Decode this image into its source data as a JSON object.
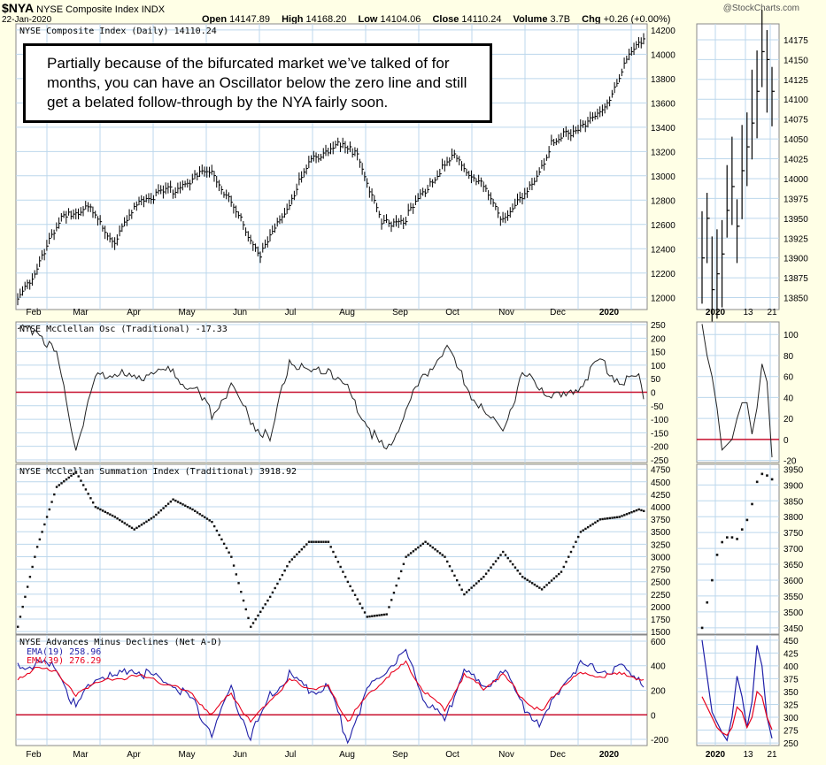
{
  "header": {
    "symbol": "$NYA",
    "name": "NYSE Composite Index",
    "exchange": "INDX",
    "date": "22-Jan-2020",
    "source": "@StockCharts.com",
    "open_label": "Open",
    "open": "14147.89",
    "high_label": "High",
    "high": "14168.20",
    "low_label": "Low",
    "low": "14104.06",
    "close_label": "Close",
    "close": "14110.24",
    "volume_label": "Volume",
    "volume": "3.7B",
    "chg_label": "Chg",
    "chg": "+0.26 (+0.00%)"
  },
  "annotation": "Partially because of the bifurcated market we’ve talked of for months, you can have an Oscillator below the zero line and still get a belated follow-through by the NYA fairly soon.",
  "colors": {
    "background": "#ffffe6",
    "grid": "#bcd7ec",
    "zero_line": "#c8102e",
    "ema19": "#1f1fa8",
    "ema39": "#e8001c",
    "price": "#000000"
  },
  "chart_data": [
    {
      "type": "ohlc",
      "title": "NYSE Composite Index (Daily) 14110.24",
      "x_labels": [
        "Feb",
        "Mar",
        "Apr",
        "May",
        "Jun",
        "Jul",
        "Aug",
        "Sep",
        "Oct",
        "Nov",
        "Dec",
        "2020"
      ],
      "y_ticks": [
        12000,
        12200,
        12400,
        12600,
        12800,
        13000,
        13200,
        13400,
        13600,
        13800,
        14000,
        14200
      ],
      "ylim": [
        11900,
        14250
      ],
      "x": [
        0,
        10,
        20,
        30,
        40,
        50,
        60,
        70,
        80,
        90,
        100,
        110,
        120,
        130,
        140,
        150,
        160,
        170,
        180,
        190,
        200,
        210,
        220,
        230,
        240,
        250,
        258
      ],
      "values": [
        11950,
        12350,
        12700,
        12720,
        12450,
        12800,
        12850,
        12950,
        13050,
        12700,
        12350,
        12700,
        13100,
        13250,
        13200,
        12600,
        12650,
        12950,
        13150,
        12950,
        12650,
        12850,
        13250,
        13400,
        13500,
        13900,
        14150
      ]
    },
    {
      "type": "line",
      "title": "NYSE McClellan Osc (Traditional) -17.33",
      "x_labels": [
        "Feb",
        "Mar",
        "Apr",
        "May",
        "Jun",
        "Jul",
        "Aug",
        "Sep",
        "Oct",
        "Nov",
        "Dec",
        "2020"
      ],
      "y_ticks": [
        250,
        200,
        150,
        100,
        50,
        0,
        -50,
        -100,
        -150,
        -200,
        -250
      ],
      "ylim": [
        -260,
        260
      ],
      "reference_line": 0,
      "x": [
        0,
        8,
        16,
        24,
        32,
        40,
        48,
        56,
        64,
        72,
        80,
        88,
        96,
        104,
        112,
        120,
        128,
        136,
        144,
        152,
        160,
        168,
        176,
        184,
        192,
        200,
        208,
        216,
        224,
        232,
        240,
        248,
        256,
        258
      ],
      "values": [
        220,
        240,
        130,
        -200,
        50,
        80,
        40,
        90,
        70,
        20,
        -80,
        30,
        -100,
        -180,
        120,
        60,
        90,
        10,
        -120,
        -230,
        -60,
        60,
        170,
        40,
        -80,
        -130,
        60,
        20,
        -30,
        30,
        120,
        40,
        60,
        -17
      ]
    },
    {
      "type": "scatter",
      "title": "NYSE McClellan Summation Index (Traditional) 3918.92",
      "x_labels": [
        "Feb",
        "Mar",
        "Apr",
        "May",
        "Jun",
        "Jul",
        "Aug",
        "Sep",
        "Oct",
        "Nov",
        "Dec",
        "2020"
      ],
      "y_ticks": [
        4750,
        4500,
        4250,
        4000,
        3750,
        3500,
        3250,
        3000,
        2750,
        2500,
        2250,
        2000,
        1750,
        1500
      ],
      "ylim": [
        1450,
        4850
      ],
      "x": [
        0,
        8,
        16,
        24,
        32,
        40,
        48,
        56,
        64,
        72,
        80,
        88,
        96,
        104,
        112,
        120,
        128,
        136,
        144,
        152,
        160,
        168,
        176,
        184,
        192,
        200,
        208,
        216,
        224,
        232,
        240,
        248,
        256,
        258
      ],
      "values": [
        1600,
        3200,
        4400,
        4700,
        4000,
        3800,
        3550,
        3800,
        4150,
        3950,
        3700,
        3000,
        1600,
        2200,
        2900,
        3300,
        3300,
        2500,
        1800,
        1850,
        3000,
        3300,
        3000,
        2250,
        2600,
        3100,
        2600,
        2350,
        2700,
        3500,
        3750,
        3800,
        3950,
        3918
      ]
    },
    {
      "type": "line",
      "title": "NYSE Advances Minus Declines (Net A-D)",
      "x_labels": [
        "Feb",
        "Mar",
        "Apr",
        "May",
        "Jun",
        "Jul",
        "Aug",
        "Sep",
        "Oct",
        "Nov",
        "Dec",
        "2020"
      ],
      "y_ticks": [
        600,
        400,
        200,
        0,
        -200
      ],
      "ylim": [
        -250,
        650
      ],
      "reference_line": 0,
      "x": [
        0,
        8,
        16,
        24,
        32,
        40,
        48,
        56,
        64,
        72,
        80,
        88,
        96,
        104,
        112,
        120,
        128,
        136,
        144,
        152,
        160,
        168,
        176,
        184,
        192,
        200,
        208,
        216,
        224,
        232,
        240,
        248,
        256,
        258
      ],
      "series": [
        {
          "name": "EMA(19) 258.96",
          "values": [
            380,
            420,
            380,
            50,
            320,
            300,
            380,
            300,
            250,
            120,
            -150,
            200,
            -180,
            150,
            320,
            200,
            220,
            -200,
            180,
            380,
            500,
            120,
            -50,
            380,
            200,
            380,
            80,
            -80,
            250,
            400,
            350,
            380,
            320,
            259
          ]
        },
        {
          "name": "EMA(39) 276.29",
          "values": [
            300,
            380,
            360,
            150,
            280,
            280,
            330,
            280,
            240,
            160,
            0,
            180,
            -60,
            130,
            280,
            220,
            230,
            -50,
            150,
            310,
            420,
            180,
            50,
            320,
            220,
            330,
            140,
            20,
            230,
            330,
            320,
            330,
            300,
            276
          ]
        }
      ]
    },
    {
      "type": "ohlc",
      "inset_of": "NYSE Composite Index",
      "x_labels": [
        "2020",
        "13",
        "21"
      ],
      "y_ticks": [
        14175,
        14150,
        14125,
        14100,
        14075,
        14050,
        14025,
        14000,
        13975,
        13950,
        13925,
        13900,
        13875,
        13850
      ],
      "ylim": [
        13835,
        14195
      ],
      "x": [
        0,
        1,
        2,
        3,
        4,
        5,
        6,
        7,
        8,
        9,
        10,
        11,
        12,
        13,
        14
      ],
      "values": [
        13900,
        13950,
        13860,
        13880,
        13905,
        13960,
        13990,
        13940,
        14010,
        14040,
        14070,
        14110,
        14160,
        14150,
        14110
      ]
    },
    {
      "type": "line",
      "inset_of": "NYSE McClellan Osc",
      "x_labels": [],
      "y_ticks": [
        100,
        80,
        60,
        40,
        20,
        0,
        -20
      ],
      "ylim": [
        -22,
        112
      ],
      "reference_line": 0,
      "x": [
        0,
        1,
        2,
        3,
        4,
        5,
        6,
        7,
        8,
        9,
        10,
        11,
        12,
        13,
        14
      ],
      "values": [
        110,
        80,
        60,
        30,
        -10,
        -5,
        0,
        20,
        35,
        35,
        5,
        30,
        72,
        55,
        -17
      ]
    },
    {
      "type": "scatter",
      "inset_of": "NYSE McClellan Summation Index",
      "x_labels": [],
      "y_ticks": [
        3950,
        3900,
        3850,
        3800,
        3750,
        3700,
        3650,
        3600,
        3550,
        3500,
        3450
      ],
      "ylim": [
        3430,
        3965
      ],
      "x": [
        0,
        1,
        2,
        3,
        4,
        5,
        6,
        7,
        8,
        9,
        10,
        11,
        12,
        13,
        14
      ],
      "values": [
        3450,
        3530,
        3600,
        3680,
        3720,
        3735,
        3735,
        3730,
        3760,
        3790,
        3840,
        3910,
        3935,
        3930,
        3918
      ]
    },
    {
      "type": "line",
      "inset_of": "NYSE Advances Minus Declines",
      "x_labels": [
        "2020",
        "13",
        "21"
      ],
      "y_ticks": [
        450,
        425,
        400,
        375,
        350,
        325,
        300,
        275,
        250
      ],
      "ylim": [
        245,
        460
      ],
      "x": [
        0,
        1,
        2,
        3,
        4,
        5,
        6,
        7,
        8,
        9,
        10,
        11,
        12,
        13,
        14
      ],
      "series": [
        {
          "name": "EMA(19)",
          "values": [
            450,
            380,
            310,
            290,
            270,
            255,
            300,
            380,
            340,
            280,
            330,
            440,
            400,
            300,
            259
          ]
        },
        {
          "name": "EMA(39)",
          "values": [
            340,
            320,
            300,
            280,
            270,
            265,
            280,
            320,
            310,
            280,
            300,
            350,
            340,
            300,
            276
          ]
        }
      ]
    }
  ]
}
